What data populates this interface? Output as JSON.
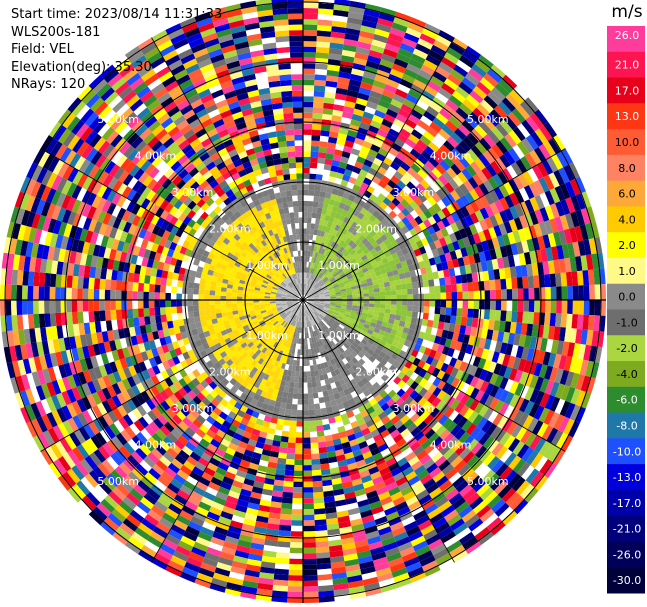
{
  "header": {
    "start_time": "Start time: 2023/08/14 11:31:33",
    "instrument": "WLS200s-181",
    "field": "Field: VEL",
    "elevation": "Elevation(deg): 35.30",
    "nrays": "NRays: 120"
  },
  "colorbar": {
    "unit": "m/s",
    "ticks": [
      "26.0",
      "21.0",
      "17.0",
      "13.0",
      "10.0",
      "8.0",
      "6.0",
      "4.0",
      "2.0",
      "1.0",
      "0.0",
      "-1.0",
      "-2.0",
      "-4.0",
      "-6.0",
      "-8.0",
      "-10.0",
      "-13.0",
      "-17.0",
      "-21.0",
      "-26.0",
      "-30.0"
    ],
    "colors": [
      "#ff3c9c",
      "#ff1452",
      "#e8001a",
      "#ff3614",
      "#ff5b34",
      "#ff8262",
      "#ffa83a",
      "#ffca00",
      "#ffff00",
      "#fffa88",
      "#8a8a8a",
      "#6e6e6e",
      "#aad640",
      "#7eaa20",
      "#2d8c2d",
      "#1e78aa",
      "#1e50ff",
      "#0000dc",
      "#0000aa",
      "#00007a",
      "#00005a",
      "#00003a"
    ]
  },
  "chart_data": {
    "type": "heatmap",
    "projection": "polar PPI",
    "field": "VEL",
    "unit": "m/s",
    "range_rings_km": [
      1.0,
      2.0,
      3.0,
      4.0,
      5.0
    ],
    "ring_labels": [
      "1.00km",
      "2.00km",
      "3.00km",
      "4.00km",
      "5.00km"
    ],
    "nrays": 120,
    "color_range": [
      -30.0,
      26.0
    ],
    "description": "Inner ~2.5 km shows coherent velocity: positive (yellow) to the west, negative (light green) to the east, near-zero gray elsewhere; beyond ~2.5 km the field is noise spanning the full colour range."
  }
}
